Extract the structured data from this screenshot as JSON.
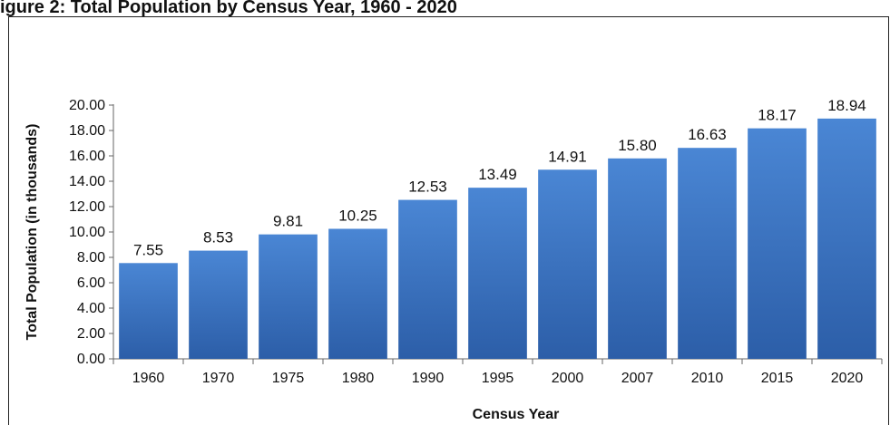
{
  "header": {
    "title_fragment": "igure 2: Total Population by Census Year, 1960 - 2020"
  },
  "chart_data": {
    "type": "bar",
    "categories": [
      "1960",
      "1970",
      "1975",
      "1980",
      "1990",
      "1995",
      "2000",
      "2007",
      "2010",
      "2015",
      "2020"
    ],
    "values": [
      7.55,
      8.53,
      9.81,
      10.25,
      12.53,
      13.49,
      14.91,
      15.8,
      16.63,
      18.17,
      18.94
    ],
    "value_labels": [
      "7.55",
      "8.53",
      "9.81",
      "10.25",
      "12.53",
      "13.49",
      "14.91",
      "15.80",
      "16.63",
      "18.17",
      "18.94"
    ],
    "xlabel": "Census Year",
    "ylabel": "Total Population (in thousands)",
    "ylim": [
      0,
      20
    ],
    "yticks": [
      "0.00",
      "2.00",
      "4.00",
      "6.00",
      "8.00",
      "10.00",
      "12.00",
      "14.00",
      "16.00",
      "18.00",
      "20.00"
    ],
    "grid": false,
    "legend": "none",
    "bar_color": "#3a74c4"
  }
}
